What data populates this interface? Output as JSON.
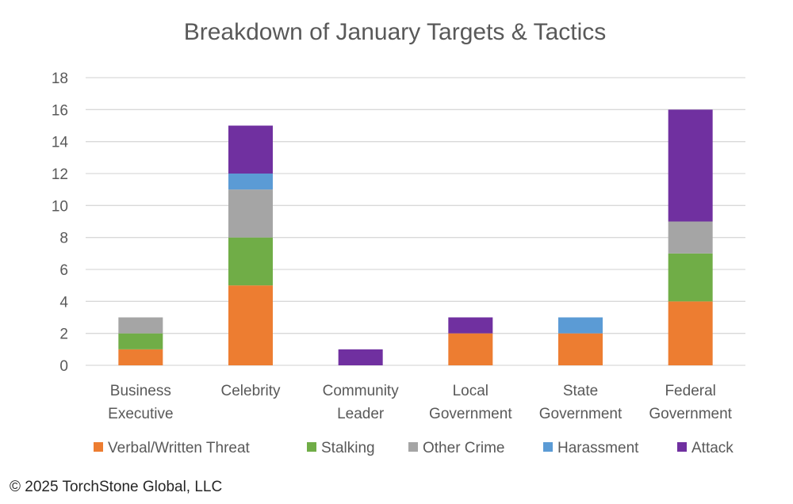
{
  "chart_data": {
    "type": "bar",
    "stacked": true,
    "title": "Breakdown of January Targets & Tactics",
    "categories": [
      [
        "Business",
        "Executive"
      ],
      [
        "Celebrity"
      ],
      [
        "Community",
        "Leader"
      ],
      [
        "Local",
        "Government"
      ],
      [
        "State",
        "Government"
      ],
      [
        "Federal",
        "Government"
      ]
    ],
    "series": [
      {
        "name": "Verbal/Written Threat",
        "color": "#ED7D31",
        "values": [
          1,
          5,
          0,
          2,
          2,
          4
        ]
      },
      {
        "name": "Stalking",
        "color": "#70AD47",
        "values": [
          1,
          3,
          0,
          0,
          0,
          3
        ]
      },
      {
        "name": "Other Crime",
        "color": "#A5A5A5",
        "values": [
          1,
          3,
          0,
          0,
          0,
          2
        ]
      },
      {
        "name": "Harassment",
        "color": "#5B9BD5",
        "values": [
          0,
          1,
          0,
          0,
          1,
          0
        ]
      },
      {
        "name": "Attack",
        "color": "#7030A0",
        "values": [
          0,
          3,
          1,
          1,
          0,
          7
        ]
      }
    ],
    "ylim": [
      0,
      18
    ],
    "yticks": [
      0,
      2,
      4,
      6,
      8,
      10,
      12,
      14,
      16,
      18
    ],
    "grid": true,
    "legend": "bottom"
  },
  "footer": {
    "copyright": "© 2025 TorchStone Global, LLC"
  }
}
